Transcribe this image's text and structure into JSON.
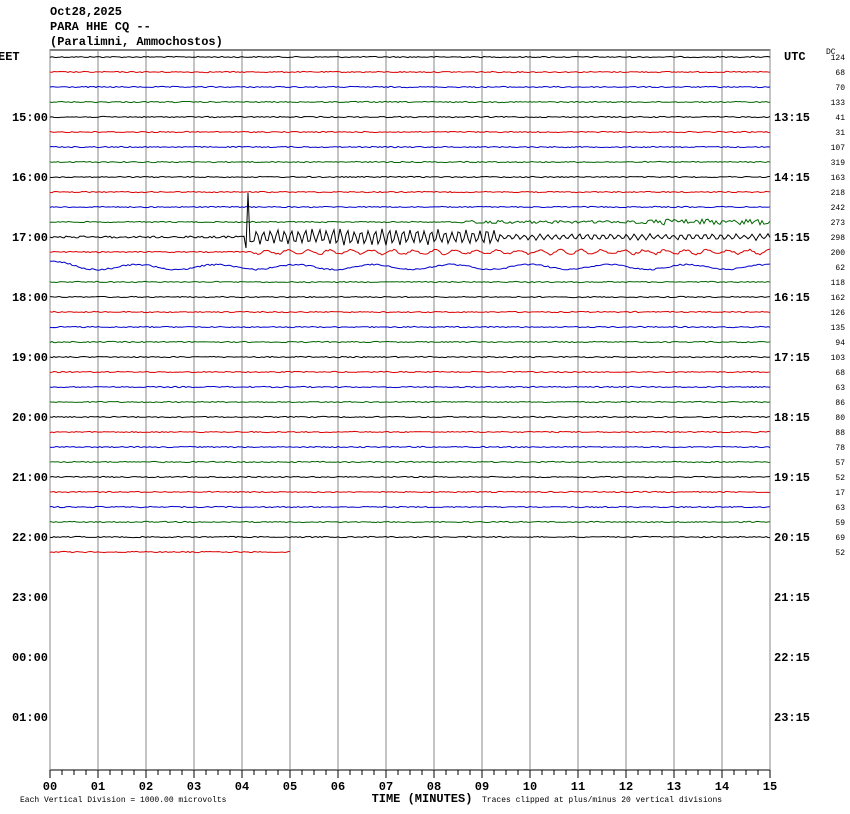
{
  "header": {
    "date": "Oct28,2025",
    "station": "PARA HHE CQ --",
    "location": "(Paralimni, Ammochostos)"
  },
  "left_zone": "EET",
  "right_zone": "UTC",
  "dc_label": "DC",
  "left_times": [
    "15:00",
    "16:00",
    "17:00",
    "18:00",
    "19:00",
    "20:00",
    "21:00",
    "22:00",
    "23:00",
    "00:00",
    "01:00"
  ],
  "right_times": [
    "13:15",
    "14:15",
    "15:15",
    "16:15",
    "17:15",
    "18:15",
    "19:15",
    "20:15",
    "21:15",
    "22:15",
    "23:15"
  ],
  "dc_values": [
    124,
    68,
    70,
    133,
    41,
    31,
    107,
    319,
    163,
    218,
    242,
    273,
    298,
    200,
    62,
    118,
    162,
    126,
    135,
    94,
    103,
    68,
    63,
    86,
    80,
    88,
    78,
    57,
    52,
    17,
    63,
    59,
    69,
    52
  ],
  "x_labels": [
    "00",
    "01",
    "02",
    "03",
    "04",
    "05",
    "06",
    "07",
    "08",
    "09",
    "10",
    "11",
    "12",
    "13",
    "14",
    "15"
  ],
  "x_title": "TIME (MINUTES)",
  "scale_note": "Each Vertical Division = 1000.00 microvolts",
  "clip_note": "Traces clipped at plus/minus 20 vertical divisions"
}
